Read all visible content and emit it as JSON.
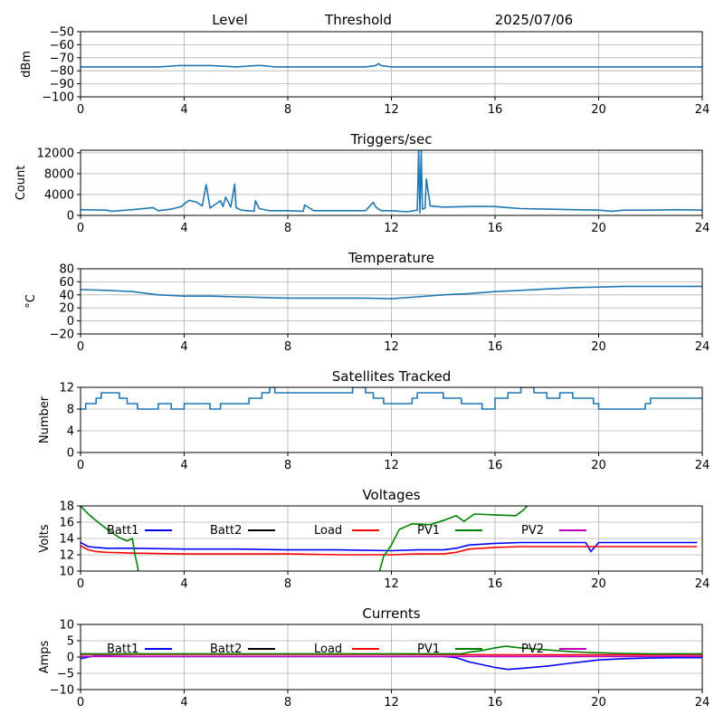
{
  "header": {
    "left": "Level",
    "center": "Threshold",
    "right": "2025/07/06"
  },
  "chart_data": [
    {
      "type": "line",
      "title": "",
      "ylabel": "dBm",
      "xlim": [
        0,
        24
      ],
      "ylim": [
        -100,
        -50
      ],
      "xticks": [
        0,
        4,
        8,
        12,
        16,
        20,
        24
      ],
      "yticks": [
        -100,
        -90,
        -80,
        -70,
        -60,
        -50
      ],
      "grid": true,
      "series": [
        {
          "color": "#1f77b4",
          "x": [
            0,
            1,
            2,
            3,
            3.8,
            4,
            4.5,
            5,
            6,
            6.8,
            7,
            7.5,
            8,
            9,
            10,
            11,
            11.4,
            11.5,
            11.6,
            12,
            13,
            14,
            15,
            16,
            17,
            18,
            19,
            20,
            21,
            22,
            23,
            24
          ],
          "y": [
            -77,
            -77,
            -77,
            -77,
            -76,
            -76,
            -76,
            -76,
            -77,
            -76,
            -76,
            -77,
            -77,
            -77,
            -77,
            -77,
            -76,
            -74.5,
            -76,
            -77,
            -77,
            -77,
            -77,
            -77,
            -77,
            -77,
            -77,
            -77,
            -77,
            -77,
            -77,
            -77
          ]
        }
      ]
    },
    {
      "type": "line",
      "title": "Triggers/sec",
      "ylabel": "Count",
      "xlim": [
        0,
        24
      ],
      "ylim": [
        0,
        12500
      ],
      "xticks": [
        0,
        4,
        8,
        12,
        16,
        20,
        24
      ],
      "yticks": [
        0,
        4000,
        8000,
        12000
      ],
      "grid": true,
      "series": [
        {
          "color": "#1f77b4",
          "x": [
            0,
            1,
            1.2,
            2,
            2.8,
            3,
            3.5,
            3.9,
            4,
            4.2,
            4.5,
            4.7,
            4.85,
            5,
            5.4,
            5.5,
            5.6,
            5.8,
            5.95,
            6,
            6.2,
            6.7,
            6.75,
            6.9,
            7.3,
            8,
            8.6,
            8.65,
            9,
            10,
            11,
            11.3,
            11.4,
            11.6,
            12,
            12.6,
            13,
            13.05,
            13.1,
            13.15,
            13.2,
            13.3,
            13.35,
            13.5,
            14,
            15,
            16,
            16.5,
            17,
            18,
            19,
            20,
            20.5,
            21,
            22,
            23,
            24
          ],
          "y": [
            1100,
            1000,
            800,
            1100,
            1500,
            900,
            1200,
            1700,
            2200,
            2900,
            2500,
            1800,
            5900,
            1400,
            2800,
            1700,
            3500,
            1600,
            6000,
            1500,
            1000,
            800,
            2800,
            1300,
            900,
            900,
            800,
            2000,
            900,
            900,
            900,
            2500,
            1600,
            900,
            900,
            700,
            1000,
            12500,
            500,
            12500,
            1200,
            1400,
            7000,
            1800,
            1600,
            1700,
            1700,
            1500,
            1300,
            1200,
            1100,
            1000,
            800,
            1000,
            1000,
            1100,
            1000
          ]
        }
      ]
    },
    {
      "type": "line",
      "title": "Temperature",
      "ylabel": "°C",
      "xlim": [
        0,
        24
      ],
      "ylim": [
        -20,
        80
      ],
      "xticks": [
        0,
        4,
        8,
        12,
        16,
        20,
        24
      ],
      "yticks": [
        -20,
        0,
        20,
        40,
        60,
        80
      ],
      "grid": true,
      "series": [
        {
          "color": "#1f77b4",
          "x": [
            0,
            1,
            2,
            3,
            4,
            5,
            6,
            7,
            8,
            9,
            10,
            11,
            12,
            13,
            14,
            15,
            16,
            17,
            18,
            19,
            20,
            21,
            22,
            23,
            24
          ],
          "y": [
            48,
            47,
            45,
            40,
            38,
            38,
            37,
            36,
            35,
            35,
            35,
            35,
            34,
            37,
            40,
            42,
            45,
            47,
            49,
            51,
            52,
            53,
            53,
            53,
            53
          ]
        }
      ]
    },
    {
      "type": "line",
      "title": "Satellites Tracked",
      "ylabel": "Number",
      "xlim": [
        0,
        24
      ],
      "ylim": [
        0,
        12
      ],
      "xticks": [
        0,
        4,
        8,
        12,
        16,
        20,
        24
      ],
      "yticks": [
        0,
        4,
        8,
        12
      ],
      "grid": true,
      "series": [
        {
          "color": "#1f77b4",
          "step": true,
          "x": [
            0,
            0.2,
            0.6,
            0.8,
            1.5,
            1.8,
            2.2,
            3,
            3.5,
            4,
            5,
            5.4,
            6,
            6.5,
            7,
            7.3,
            7.5,
            8,
            9,
            10,
            10.5,
            11,
            11.3,
            11.7,
            12,
            12.8,
            13,
            13.5,
            14,
            14.7,
            15,
            15.5,
            16,
            16.5,
            17,
            17.5,
            18,
            18.5,
            19,
            19.8,
            20,
            20.5,
            21,
            21.8,
            22,
            22.5,
            23,
            23.7,
            24
          ],
          "y": [
            8,
            9,
            10,
            11,
            10,
            9,
            8,
            9,
            8,
            9,
            8,
            9,
            9,
            10,
            11,
            12,
            11,
            11,
            11,
            11,
            12,
            11,
            10,
            9,
            9,
            10,
            11,
            11,
            10,
            9,
            9,
            8,
            10,
            11,
            12,
            11,
            10,
            11,
            10,
            9,
            8,
            8,
            8,
            9,
            10,
            10,
            10,
            10,
            10
          ]
        }
      ]
    },
    {
      "type": "line",
      "title": "Voltages",
      "ylabel": "Volts",
      "xlim": [
        0,
        24
      ],
      "ylim": [
        10,
        18
      ],
      "xticks": [
        0,
        4,
        8,
        12,
        16,
        20,
        24
      ],
      "yticks": [
        10,
        12,
        14,
        16,
        18
      ],
      "grid": true,
      "legend": [
        "Batt1",
        "Batt2",
        "Load",
        "PV1",
        "PV2"
      ],
      "series": [
        {
          "name": "Batt1",
          "color": "#0000ff",
          "x": [
            0,
            0.3,
            0.6,
            1,
            2,
            4,
            6,
            8,
            10,
            12,
            13,
            14,
            14.5,
            15,
            16,
            17,
            18,
            19,
            19.5,
            19.7,
            20,
            21,
            22,
            23,
            23.8
          ],
          "y": [
            13.5,
            13.0,
            12.9,
            12.8,
            12.8,
            12.7,
            12.7,
            12.6,
            12.6,
            12.5,
            12.6,
            12.6,
            12.8,
            13.2,
            13.4,
            13.5,
            13.5,
            13.5,
            13.5,
            12.4,
            13.5,
            13.5,
            13.5,
            13.5,
            13.5
          ]
        },
        {
          "name": "Load",
          "color": "#ff0000",
          "x": [
            0,
            0.3,
            0.6,
            1,
            2,
            4,
            6,
            8,
            10,
            12,
            13,
            14,
            14.5,
            15,
            16,
            17,
            18,
            19,
            20,
            21,
            22,
            23,
            23.8
          ],
          "y": [
            13.1,
            12.6,
            12.4,
            12.3,
            12.2,
            12.1,
            12.1,
            12.1,
            12.0,
            12.0,
            12.1,
            12.1,
            12.3,
            12.7,
            12.9,
            13.0,
            13.0,
            13.0,
            13.0,
            13.0,
            13.0,
            13.0,
            13.0
          ]
        },
        {
          "name": "PV1",
          "color": "#008000",
          "x": [
            0,
            0.3,
            0.6,
            1,
            1.5,
            1.8,
            2.0,
            2.1,
            2.2,
            2.25
          ],
          "y": [
            18,
            17,
            16.2,
            15.2,
            14.1,
            13.7,
            14.0,
            12.0,
            10.6,
            9.5
          ]
        },
        {
          "name": "PV1",
          "color": "#008000",
          "x": [
            11.5,
            11.7,
            12,
            12.3,
            12.8,
            13.5,
            14,
            14.5,
            14.8,
            15.2,
            16,
            16.8,
            17.1,
            17.3
          ],
          "y": [
            9.5,
            11.8,
            13.2,
            15.1,
            15.8,
            15.7,
            16.2,
            16.8,
            16.1,
            17.0,
            16.9,
            16.8,
            17.5,
            18.2
          ]
        }
      ]
    },
    {
      "type": "line",
      "title": "Currents",
      "ylabel": "Amps",
      "xlim": [
        0,
        24
      ],
      "ylim": [
        -10,
        10
      ],
      "xticks": [
        0,
        4,
        8,
        12,
        16,
        20,
        24
      ],
      "yticks": [
        -10,
        -5,
        0,
        5,
        10
      ],
      "grid": true,
      "legend": [
        "Batt1",
        "Batt2",
        "Load",
        "PV1",
        "PV2"
      ],
      "series": [
        {
          "name": "Batt1",
          "color": "#0000ff",
          "x": [
            0,
            0.5,
            1,
            2,
            4,
            8,
            12,
            14,
            14.5,
            15,
            16,
            16.5,
            17,
            18,
            19,
            20,
            21,
            22,
            23,
            24
          ],
          "y": [
            -0.5,
            0.3,
            0.3,
            0.2,
            0.2,
            0.2,
            0.2,
            0.2,
            -0.2,
            -1.5,
            -3.2,
            -3.8,
            -3.5,
            -2.8,
            -1.8,
            -0.9,
            -0.5,
            -0.3,
            -0.2,
            -0.2
          ]
        },
        {
          "name": "Load",
          "color": "#ff0000",
          "x": [
            0,
            2,
            4,
            8,
            12,
            16,
            20,
            24
          ],
          "y": [
            0.8,
            0.8,
            0.8,
            0.8,
            0.8,
            0.7,
            0.7,
            0.7
          ]
        },
        {
          "name": "PV1",
          "color": "#008000",
          "x": [
            0,
            2,
            4,
            8,
            12,
            14,
            14.7,
            15,
            15.5,
            16,
            16.4,
            17,
            18,
            19,
            20,
            21,
            22,
            23,
            24
          ],
          "y": [
            1.0,
            1.0,
            1.0,
            1.0,
            1.0,
            1.0,
            1.0,
            1.5,
            2.0,
            2.8,
            3.3,
            2.8,
            2.2,
            1.6,
            1.3,
            1.1,
            1.0,
            1.0,
            1.0
          ]
        },
        {
          "name": "PV2",
          "color": "#c000c0",
          "x": [
            0,
            4,
            8,
            12,
            16,
            20,
            24
          ],
          "y": [
            0.2,
            0.2,
            0.2,
            0.2,
            0.2,
            0.2,
            0.2
          ]
        }
      ]
    }
  ]
}
